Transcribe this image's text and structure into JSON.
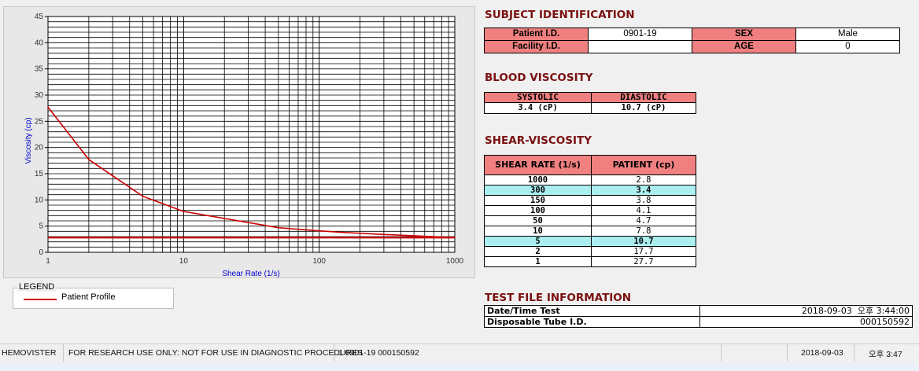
{
  "chart_data": {
    "type": "line",
    "xscale": "log",
    "xlabel": "Shear Rate (1/s)",
    "ylabel": "Viscosity (cp)",
    "xlim": [
      1,
      1000
    ],
    "ylim": [
      0,
      45
    ],
    "x_ticks": [
      "1",
      "10",
      "100",
      "1000"
    ],
    "y_ticks": [
      "0",
      "5",
      "10",
      "15",
      "20",
      "25",
      "30",
      "35",
      "40",
      "45"
    ],
    "grid": true,
    "series": [
      {
        "name": "Patient Profile",
        "color": "#cc0000",
        "x": [
          1,
          2,
          5,
          10,
          50,
          100,
          150,
          300,
          1000
        ],
        "y": [
          27.7,
          17.7,
          10.7,
          7.8,
          4.7,
          4.1,
          3.8,
          3.4,
          2.8
        ]
      }
    ],
    "reference_line": {
      "y": 2.8,
      "color": "#cc0000"
    }
  },
  "legend": {
    "title": "LEGEND",
    "label": "Patient Profile"
  },
  "subject": {
    "heading": "SUBJECT IDENTIFICATION",
    "patient_id_label": "Patient I.D.",
    "patient_id": "0901-19",
    "sex_label": "SEX",
    "sex": "Male",
    "facility_label": "Facility I.D.",
    "facility": "",
    "age_label": "AGE",
    "age": "0"
  },
  "blood": {
    "heading": "BLOOD VISCOSITY",
    "systolic_label": "SYSTOLIC",
    "diastolic_label": "DIASTOLIC",
    "systolic": "3.4 (cP)",
    "diastolic": "10.7 (cP)"
  },
  "shear": {
    "heading": "SHEAR-VISCOSITY",
    "col1": "SHEAR RATE (1/s)",
    "col2": "PATIENT (cp)",
    "rows": [
      {
        "rate": "1000",
        "value": "2.8",
        "highlight": false
      },
      {
        "rate": "300",
        "value": "3.4",
        "highlight": true
      },
      {
        "rate": "150",
        "value": "3.8",
        "highlight": false
      },
      {
        "rate": "100",
        "value": "4.1",
        "highlight": false
      },
      {
        "rate": "50",
        "value": "4.7",
        "highlight": false
      },
      {
        "rate": "10",
        "value": "7.8",
        "highlight": false
      },
      {
        "rate": "5",
        "value": "10.7",
        "highlight": true
      },
      {
        "rate": "2",
        "value": "17.7",
        "highlight": false
      },
      {
        "rate": "1",
        "value": "27.7",
        "highlight": false
      }
    ]
  },
  "file": {
    "heading": "TEST FILE INFORMATION",
    "date_label": "Date/Time Test",
    "date_value": "2018-09-03  오후 3:44:00",
    "tube_label": "Disposable Tube I.D.",
    "tube_value": "000150592"
  },
  "statusbar": {
    "app": "HEMOVISTER",
    "notice": "FOR RESEARCH USE ONLY: NOT FOR USE IN DIAGNOSTIC PROCEDURES",
    "record": "1  0901-19  000150592",
    "date": "2018-09-03",
    "time": "오후 3:47"
  }
}
